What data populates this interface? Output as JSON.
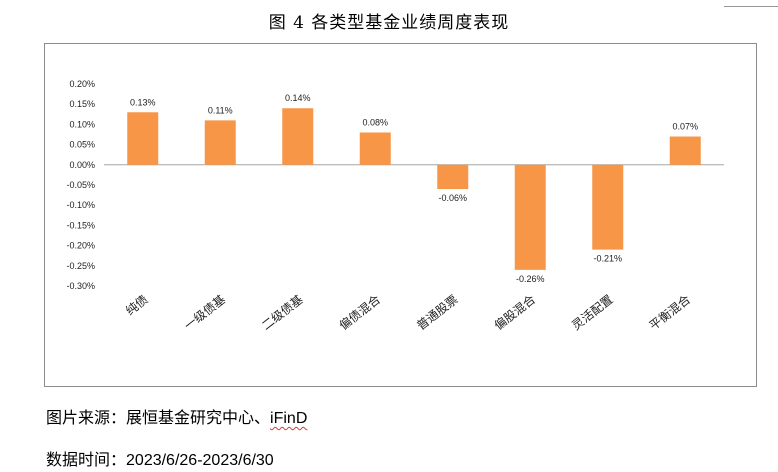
{
  "page": {
    "title": "图 4 各类型基金业绩周度表现",
    "source_label": "图片来源：",
    "source_text": "展恒基金研究中心、",
    "source_brand": "iFinD",
    "date_label": "数据时间：",
    "date_value": "2023/6/26-2023/6/30"
  },
  "colors": {
    "bar": "#F79646",
    "axis": "#a6a6a6",
    "frame": "#8c8c8c"
  },
  "chart_data": {
    "type": "bar",
    "title": "",
    "xlabel": "",
    "ylabel": "",
    "categories": [
      "纯债",
      "一级债基",
      "二级债基",
      "偏债混合",
      "普通股票",
      "偏股混合",
      "灵活配置",
      "平衡混合"
    ],
    "values": [
      0.13,
      0.11,
      0.14,
      0.08,
      -0.06,
      -0.26,
      -0.21,
      0.07
    ],
    "data_labels": [
      "0.13%",
      "0.11%",
      "0.14%",
      "0.08%",
      "-0.06%",
      "-0.26%",
      "-0.21%",
      "0.07%"
    ],
    "ylim": [
      -0.3,
      0.2
    ],
    "yticks": [
      "0.20%",
      "0.15%",
      "0.10%",
      "0.05%",
      "0.00%",
      "-0.05%",
      "-0.10%",
      "-0.15%",
      "-0.20%",
      "-0.25%",
      "-0.30%"
    ],
    "grid": false,
    "legend": "none"
  }
}
